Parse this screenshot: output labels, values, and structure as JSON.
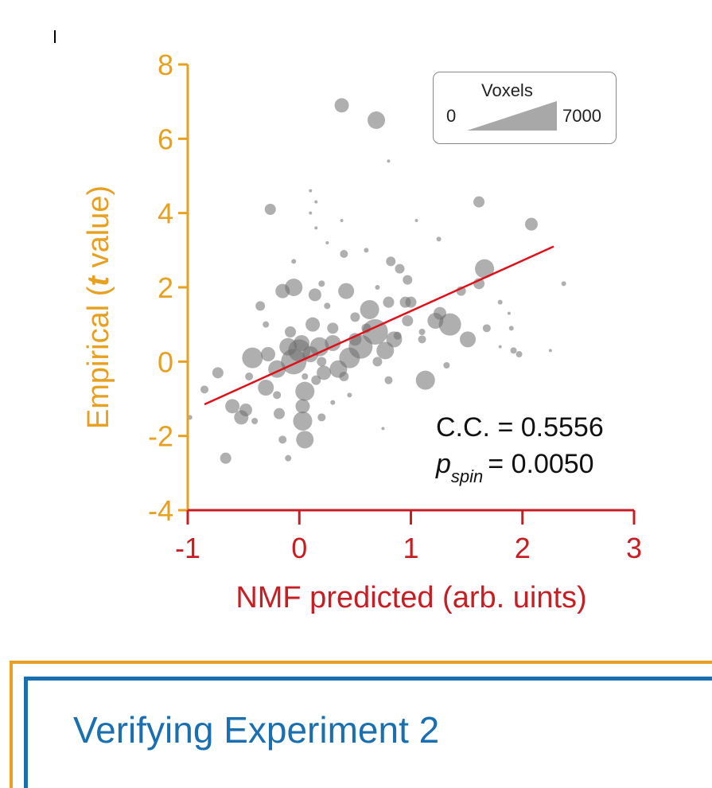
{
  "colors": {
    "y_axis": "#E8A020",
    "x_axis": "#C81E23",
    "fit_line": "#E0101A",
    "points": "#6E6E6E",
    "heading": "#1A6FB0"
  },
  "chart_data": {
    "type": "scatter",
    "title": "",
    "xlabel": "NMF predicted (arb. uints)",
    "ylabel_prefix": "Empirical (",
    "ylabel_italic": "t",
    "ylabel_suffix": " value)",
    "xlim": [
      -1,
      3
    ],
    "ylim": [
      -4,
      8
    ],
    "x_ticks": [
      -1,
      0,
      1,
      2,
      3
    ],
    "y_ticks": [
      -4,
      -2,
      0,
      2,
      4,
      6,
      8
    ],
    "x_tick_labels": [
      "-1",
      "0",
      "1",
      "2",
      "3"
    ],
    "y_tick_labels": [
      "-4",
      "-2",
      "0",
      "2",
      "4",
      "6",
      "8"
    ],
    "fit_line": {
      "x": [
        -0.85,
        2.28
      ],
      "y": [
        -1.15,
        3.1
      ]
    },
    "stats": {
      "cc_label": "C.C. = 0.5556",
      "p_symbol": "p",
      "p_subscript": "spin",
      "p_value": "= 0.0050"
    },
    "size_legend": {
      "title": "Voxels",
      "min": "0",
      "max": "7000"
    },
    "points": [
      {
        "x": 0.38,
        "y": 6.9,
        "s": 9
      },
      {
        "x": 0.69,
        "y": 6.5,
        "s": 11
      },
      {
        "x": -0.26,
        "y": 4.1,
        "s": 7
      },
      {
        "x": 1.61,
        "y": 4.3,
        "s": 7
      },
      {
        "x": 2.08,
        "y": 3.7,
        "s": 8
      },
      {
        "x": 1.66,
        "y": 2.5,
        "s": 12
      },
      {
        "x": 1.61,
        "y": 2.1,
        "s": 7
      },
      {
        "x": 1.35,
        "y": 1.0,
        "s": 14
      },
      {
        "x": 1.22,
        "y": 1.1,
        "s": 10
      },
      {
        "x": 1.26,
        "y": 1.3,
        "s": 8
      },
      {
        "x": 1.51,
        "y": 0.6,
        "s": 10
      },
      {
        "x": 1.13,
        "y": -0.5,
        "s": 12
      },
      {
        "x": 0.42,
        "y": 1.9,
        "s": 10
      },
      {
        "x": 0.63,
        "y": 1.4,
        "s": 12
      },
      {
        "x": 0.68,
        "y": 0.8,
        "s": 16
      },
      {
        "x": 0.55,
        "y": 0.4,
        "s": 15
      },
      {
        "x": 0.85,
        "y": 0.6,
        "s": 10
      },
      {
        "x": 0.77,
        "y": 0.3,
        "s": 11
      },
      {
        "x": 0.45,
        "y": 0.1,
        "s": 13
      },
      {
        "x": 0.3,
        "y": 0.5,
        "s": 10
      },
      {
        "x": 0.18,
        "y": 0.4,
        "s": 12
      },
      {
        "x": 0.1,
        "y": 0.2,
        "s": 10
      },
      {
        "x": 0.0,
        "y": 0.3,
        "s": 14
      },
      {
        "x": -0.05,
        "y": 0.0,
        "s": 16
      },
      {
        "x": -0.1,
        "y": 0.4,
        "s": 11
      },
      {
        "x": 0.02,
        "y": 0.5,
        "s": 10
      },
      {
        "x": -0.2,
        "y": -0.2,
        "s": 11
      },
      {
        "x": -0.28,
        "y": 0.2,
        "s": 9
      },
      {
        "x": -0.42,
        "y": 0.1,
        "s": 13
      },
      {
        "x": -0.3,
        "y": -0.7,
        "s": 10
      },
      {
        "x": 0.05,
        "y": -0.8,
        "s": 12
      },
      {
        "x": 0.03,
        "y": -1.6,
        "s": 12
      },
      {
        "x": 0.05,
        "y": -2.1,
        "s": 11
      },
      {
        "x": 0.03,
        "y": -1.2,
        "s": 9
      },
      {
        "x": -0.15,
        "y": 1.9,
        "s": 9
      },
      {
        "x": -0.05,
        "y": 2.0,
        "s": 11
      },
      {
        "x": 0.14,
        "y": 1.8,
        "s": 8
      },
      {
        "x": 0.12,
        "y": 1.0,
        "s": 9
      },
      {
        "x": 0.22,
        "y": -0.3,
        "s": 9
      },
      {
        "x": 0.35,
        "y": -0.2,
        "s": 11
      },
      {
        "x": -0.6,
        "y": -1.2,
        "s": 9
      },
      {
        "x": -0.48,
        "y": -1.3,
        "s": 8
      },
      {
        "x": -0.52,
        "y": -1.5,
        "s": 9
      },
      {
        "x": -0.66,
        "y": -2.6,
        "s": 7
      },
      {
        "x": -0.73,
        "y": -0.3,
        "s": 7
      },
      {
        "x": 0.8,
        "y": 1.6,
        "s": 7
      },
      {
        "x": 0.95,
        "y": 1.6,
        "s": 7
      },
      {
        "x": 1.0,
        "y": 1.6,
        "s": 7
      },
      {
        "x": 0.82,
        "y": 2.7,
        "s": 6
      },
      {
        "x": 0.9,
        "y": 2.5,
        "s": 6
      },
      {
        "x": 0.97,
        "y": 2.2,
        "s": 6
      },
      {
        "x": 0.97,
        "y": 1.1,
        "s": 7
      },
      {
        "x": 1.45,
        "y": 1.9,
        "s": 6
      },
      {
        "x": 0.4,
        "y": 2.9,
        "s": 5
      },
      {
        "x": 0.6,
        "y": 0.9,
        "s": 6
      },
      {
        "x": 0.5,
        "y": 1.2,
        "s": 6
      },
      {
        "x": 0.3,
        "y": 0.9,
        "s": 7
      },
      {
        "x": 0.2,
        "y": 0.0,
        "s": 6
      },
      {
        "x": 0.15,
        "y": -0.5,
        "s": 6
      },
      {
        "x": 0.4,
        "y": -0.4,
        "s": 6
      },
      {
        "x": 0.5,
        "y": 0.6,
        "s": 8
      },
      {
        "x": 0.7,
        "y": 0.0,
        "s": 6
      },
      {
        "x": 0.8,
        "y": -0.5,
        "s": 5
      },
      {
        "x": 0.88,
        "y": 0.7,
        "s": 5
      },
      {
        "x": 1.1,
        "y": 0.6,
        "s": 5
      },
      {
        "x": -0.08,
        "y": 0.8,
        "s": 7
      },
      {
        "x": -0.35,
        "y": 1.5,
        "s": 6
      },
      {
        "x": -0.18,
        "y": -1.4,
        "s": 7
      },
      {
        "x": -0.15,
        "y": -2.1,
        "s": 5
      },
      {
        "x": -0.1,
        "y": -2.6,
        "s": 4
      },
      {
        "x": 0.2,
        "y": -1.5,
        "s": 5
      },
      {
        "x": -0.85,
        "y": -0.75,
        "s": 5
      },
      {
        "x": -0.98,
        "y": -1.5,
        "s": 3
      },
      {
        "x": -0.2,
        "y": -0.9,
        "s": 5
      },
      {
        "x": -0.45,
        "y": -0.4,
        "s": 5
      },
      {
        "x": -0.4,
        "y": -1.6,
        "s": 4
      },
      {
        "x": 0.1,
        "y": 4.6,
        "s": 2
      },
      {
        "x": 0.15,
        "y": 4.3,
        "s": 2
      },
      {
        "x": 0.1,
        "y": 4.0,
        "s": 2
      },
      {
        "x": 0.15,
        "y": 3.6,
        "s": 2
      },
      {
        "x": 0.25,
        "y": 3.2,
        "s": 2
      },
      {
        "x": 0.38,
        "y": 3.8,
        "s": 2
      },
      {
        "x": 0.6,
        "y": 3.0,
        "s": 3
      },
      {
        "x": 1.05,
        "y": 3.8,
        "s": 2
      },
      {
        "x": 1.25,
        "y": 3.3,
        "s": 3
      },
      {
        "x": 0.8,
        "y": 5.4,
        "s": 2
      },
      {
        "x": 1.8,
        "y": 1.6,
        "s": 3
      },
      {
        "x": 1.88,
        "y": 1.3,
        "s": 2
      },
      {
        "x": 1.9,
        "y": 0.9,
        "s": 3
      },
      {
        "x": 1.8,
        "y": 0.4,
        "s": 2
      },
      {
        "x": 1.92,
        "y": 0.3,
        "s": 4
      },
      {
        "x": 1.97,
        "y": 0.2,
        "s": 4
      },
      {
        "x": 2.25,
        "y": 0.3,
        "s": 2
      },
      {
        "x": 2.37,
        "y": 2.1,
        "s": 3
      },
      {
        "x": 1.32,
        "y": -0.1,
        "s": 4
      },
      {
        "x": 1.1,
        "y": 0.8,
        "s": 4
      },
      {
        "x": 0.2,
        "y": 2.1,
        "s": 4
      },
      {
        "x": -0.05,
        "y": 2.7,
        "s": 3
      },
      {
        "x": 0.25,
        "y": 1.5,
        "s": 4
      },
      {
        "x": 0.7,
        "y": 2.0,
        "s": 3
      },
      {
        "x": 1.68,
        "y": 0.9,
        "s": 5
      },
      {
        "x": -0.3,
        "y": 1.0,
        "s": 4
      },
      {
        "x": 0.05,
        "y": -0.4,
        "s": 4
      },
      {
        "x": 0.3,
        "y": -1.1,
        "s": 3
      },
      {
        "x": 0.45,
        "y": -0.9,
        "s": 3
      },
      {
        "x": 0.75,
        "y": -1.8,
        "s": 2
      }
    ]
  },
  "section_heading": "Verifying Experiment 2"
}
